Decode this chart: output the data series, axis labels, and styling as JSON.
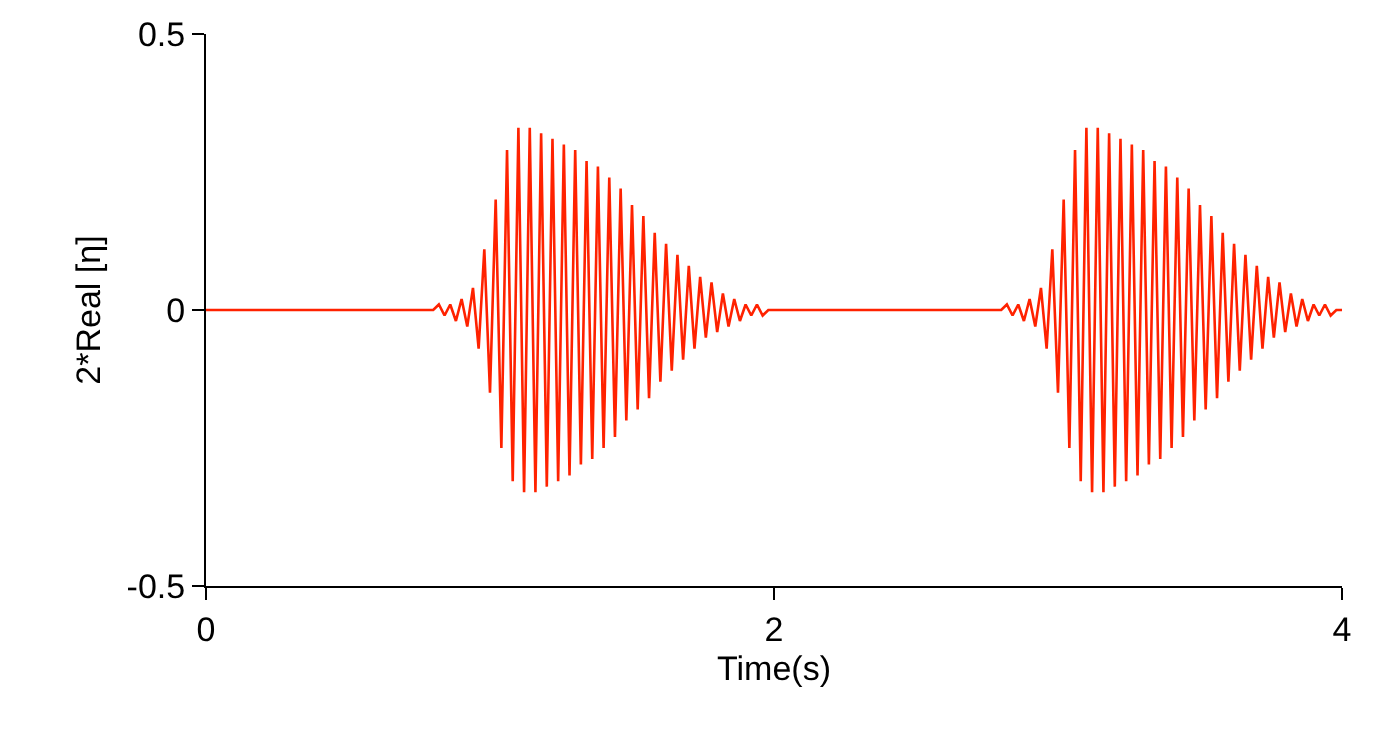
{
  "chart_data": {
    "type": "line",
    "xlabel": "Time(s)",
    "ylabel": "2*Real [η]",
    "xlim": [
      0,
      4
    ],
    "xticks": [
      0,
      2,
      4
    ],
    "ylim": [
      -0.5,
      0.5
    ],
    "yticks": [
      -0.5,
      0,
      0.5
    ],
    "grid": false,
    "marker": "none",
    "line_style": "solid",
    "series": [
      {
        "color": "#ff2200",
        "x": [
          0,
          0.8,
          0.82,
          0.84,
          0.86,
          0.88,
          0.9,
          0.92,
          0.94,
          0.96,
          0.98,
          1.0,
          1.02,
          1.04,
          1.06,
          1.08,
          1.1,
          1.12,
          1.14,
          1.16,
          1.18,
          1.2,
          1.22,
          1.24,
          1.26,
          1.28,
          1.3,
          1.32,
          1.34,
          1.36,
          1.38,
          1.4,
          1.42,
          1.44,
          1.46,
          1.48,
          1.5,
          1.52,
          1.54,
          1.56,
          1.58,
          1.6,
          1.62,
          1.64,
          1.66,
          1.68,
          1.7,
          1.72,
          1.74,
          1.76,
          1.78,
          1.8,
          1.82,
          1.84,
          1.86,
          1.88,
          1.9,
          1.92,
          1.94,
          1.96,
          1.98,
          2.8,
          2.82,
          2.84,
          2.86,
          2.88,
          2.9,
          2.92,
          2.94,
          2.96,
          2.98,
          3.0,
          3.02,
          3.04,
          3.06,
          3.08,
          3.1,
          3.12,
          3.14,
          3.16,
          3.18,
          3.2,
          3.22,
          3.24,
          3.26,
          3.28,
          3.3,
          3.32,
          3.34,
          3.36,
          3.38,
          3.4,
          3.42,
          3.44,
          3.46,
          3.48,
          3.5,
          3.52,
          3.54,
          3.56,
          3.58,
          3.6,
          3.62,
          3.64,
          3.66,
          3.68,
          3.7,
          3.72,
          3.74,
          3.76,
          3.78,
          3.8,
          3.82,
          3.84,
          3.86,
          3.88,
          3.9,
          3.92,
          3.94,
          3.96,
          3.98,
          4.0
        ],
        "values": [
          0,
          0,
          0.01,
          -0.01,
          0.01,
          -0.02,
          0.02,
          -0.03,
          0.04,
          -0.07,
          0.11,
          -0.15,
          0.2,
          -0.25,
          0.29,
          -0.31,
          0.33,
          -0.33,
          0.33,
          -0.33,
          0.32,
          -0.32,
          0.31,
          -0.31,
          0.3,
          -0.3,
          0.29,
          -0.28,
          0.27,
          -0.27,
          0.26,
          -0.25,
          0.24,
          -0.23,
          0.22,
          -0.2,
          0.19,
          -0.18,
          0.17,
          -0.16,
          0.14,
          -0.13,
          0.12,
          -0.11,
          0.1,
          -0.09,
          0.08,
          -0.07,
          0.06,
          -0.05,
          0.05,
          -0.04,
          0.03,
          -0.03,
          0.02,
          -0.02,
          0.01,
          -0.01,
          0.01,
          -0.01,
          0,
          0,
          0.01,
          -0.01,
          0.01,
          -0.02,
          0.02,
          -0.03,
          0.04,
          -0.07,
          0.11,
          -0.15,
          0.2,
          -0.25,
          0.29,
          -0.31,
          0.33,
          -0.33,
          0.33,
          -0.33,
          0.32,
          -0.32,
          0.31,
          -0.31,
          0.3,
          -0.3,
          0.29,
          -0.28,
          0.27,
          -0.27,
          0.26,
          -0.25,
          0.24,
          -0.23,
          0.22,
          -0.2,
          0.19,
          -0.18,
          0.17,
          -0.16,
          0.14,
          -0.13,
          0.12,
          -0.11,
          0.1,
          -0.09,
          0.08,
          -0.07,
          0.06,
          -0.05,
          0.05,
          -0.04,
          0.03,
          -0.03,
          0.02,
          -0.02,
          0.01,
          -0.01,
          0.01,
          -0.01,
          0,
          0
        ]
      }
    ]
  }
}
